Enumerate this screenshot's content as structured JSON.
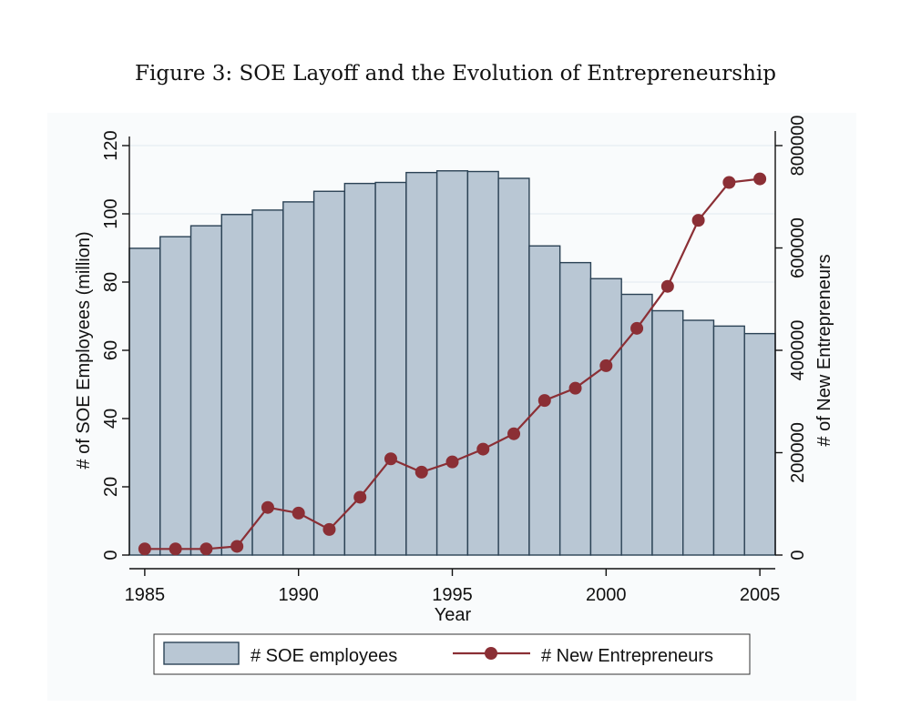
{
  "figure": {
    "title": "Figure 3: SOE Layoff and the Evolution of Entrepreneurship"
  },
  "colors": {
    "bar_fill": "#b9c7d4",
    "bar_stroke": "#2b4255",
    "line": "#8b2f35",
    "grid": "#e6ecf1",
    "panel": "#f9fbfc"
  },
  "chart_data": {
    "type": "bar+line",
    "xlabel": "Year",
    "ylabel_left": "# of SOE Employees (million)",
    "ylabel_right": "# of New Entrepreneurs",
    "x_ticks": [
      1985,
      1990,
      1995,
      2000,
      2005
    ],
    "y_left_ticks": [
      0,
      20,
      40,
      60,
      80,
      100,
      120
    ],
    "y_right_ticks": [
      0,
      200000,
      400000,
      600000,
      800000
    ],
    "ylim_left": [
      0,
      120
    ],
    "ylim_right": [
      0,
      800000
    ],
    "xlim": [
      1984.5,
      2005.5
    ],
    "grid": true,
    "legend_position": "bottom",
    "x": [
      1985,
      1986,
      1987,
      1988,
      1989,
      1990,
      1991,
      1992,
      1993,
      1994,
      1995,
      1996,
      1997,
      1998,
      1999,
      2000,
      2001,
      2002,
      2003,
      2004,
      2005
    ],
    "series": [
      {
        "name": "# SOE employees",
        "kind": "bar",
        "axis": "left",
        "values": [
          89.9,
          93.3,
          96.5,
          99.8,
          101.1,
          103.5,
          106.6,
          108.9,
          109.2,
          112.1,
          112.6,
          112.4,
          110.4,
          90.6,
          85.7,
          81.0,
          76.4,
          71.6,
          68.8,
          67.1,
          64.9
        ]
      },
      {
        "name": "# New Entrepreneurs",
        "kind": "line",
        "axis": "right",
        "values": [
          12000,
          12000,
          12000,
          17000,
          93000,
          82000,
          50000,
          113000,
          188000,
          162000,
          182000,
          207000,
          237000,
          302000,
          326000,
          370000,
          443000,
          525000,
          654000,
          728000,
          735000
        ]
      }
    ]
  }
}
